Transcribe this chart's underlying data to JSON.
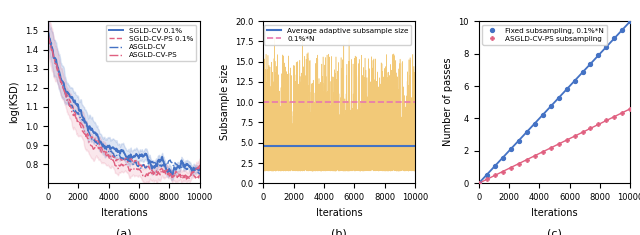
{
  "subplot_a": {
    "title": "(a)",
    "xlabel": "Iterations",
    "ylabel": "log(KSD)",
    "xlim": [
      0,
      10000
    ],
    "ylim": [
      0.7,
      1.55
    ],
    "yticks": [
      0.8,
      0.9,
      1.0,
      1.1,
      1.2,
      1.3,
      1.4,
      1.5
    ],
    "xticks": [
      0,
      2000,
      4000,
      6000,
      8000,
      10000
    ],
    "sgld_cv_color": "#4472c4",
    "sgld_cv_ps_color": "#e06080",
    "asgld_cv_color": "#4472c4",
    "asgld_cv_ps_color": "#e06080",
    "band_alpha_blue": 0.18,
    "band_alpha_pink": 0.15
  },
  "subplot_b": {
    "title": "(b)",
    "xlabel": "Iterations",
    "ylabel": "Subsample size",
    "xlim": [
      0,
      10000
    ],
    "ylim": [
      0.0,
      20.0
    ],
    "yticks": [
      0.0,
      2.5,
      5.0,
      7.5,
      10.0,
      12.5,
      15.0,
      17.5,
      20.0
    ],
    "xticks": [
      0,
      2000,
      4000,
      6000,
      8000,
      10000
    ],
    "avg_line_y": 4.65,
    "fixed_line_y": 10.0,
    "noise_color": "#f0c060",
    "avg_color": "#4472c4",
    "fixed_color": "#e878b0",
    "avg_label": "Average adaptive subsample size",
    "fixed_label": "0.1%*N"
  },
  "subplot_c": {
    "title": "(c)",
    "xlabel": "Iterations",
    "ylabel": "Number of passes",
    "xlim": [
      0,
      10000
    ],
    "ylim": [
      0,
      10
    ],
    "yticks": [
      0,
      2,
      4,
      6,
      8,
      10
    ],
    "xticks": [
      0,
      2000,
      4000,
      6000,
      8000,
      10000
    ],
    "fixed_slope": 0.001,
    "ps_slope": 0.00046,
    "fixed_color": "#4472c4",
    "ps_color": "#e06080",
    "fixed_label": "Fixed subsampling, 0.1%*N",
    "ps_label": "ASGLD-CV-PS subsampling"
  },
  "figsize": [
    6.4,
    2.35
  ],
  "dpi": 100
}
